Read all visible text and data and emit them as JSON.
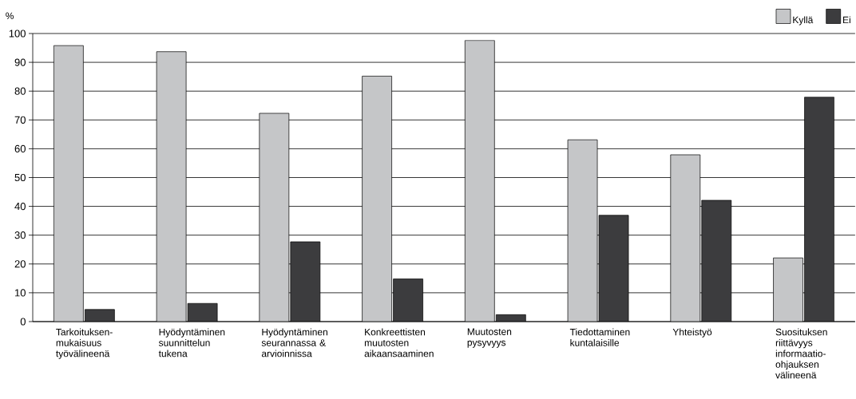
{
  "chart_data": {
    "type": "bar",
    "ylabel": "%",
    "categories": [
      "Tarkoituksen-mukaisuus työvälineenä",
      "Hyödyntäminen suunnittelun tukena",
      "Hyödyntäminen seurannassa & arvioinnissa",
      "Konkreettisten muutosten aikaansaaminen",
      "Muutosten pysyvyys",
      "Tiedottaminen kuntalaisille",
      "Yhteistyö",
      "Suosituksen riittävyys informaatio-ohjauksen välineenä"
    ],
    "series": [
      {
        "name": "Kyllä",
        "color": "#c5c6c8",
        "values": [
          95.8,
          93.7,
          72.3,
          85.2,
          97.6,
          63.1,
          57.9,
          22.1
        ]
      },
      {
        "name": "Ei",
        "color": "#3c3c3e",
        "values": [
          4.2,
          6.3,
          27.7,
          14.8,
          2.4,
          36.9,
          42.1,
          77.9
        ]
      }
    ],
    "ylim": [
      0,
      100
    ],
    "yticks": [
      0,
      10,
      20,
      30,
      40,
      50,
      60,
      70,
      80,
      90,
      100
    ],
    "grid": "y",
    "legend": "top right"
  }
}
